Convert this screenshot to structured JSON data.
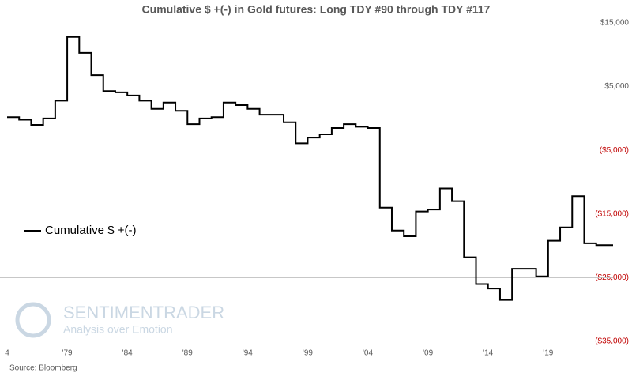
{
  "chart_data": {
    "type": "line",
    "step": true,
    "title": "Cumulative $ +(-) in Gold futures: Long TDY #90 through TDY #117",
    "source": "Source: Bloomberg",
    "watermark": {
      "name": "SENTIMENTRADER",
      "tagline": "Analysis over Emotion"
    },
    "x": [
      1974,
      1975,
      1976,
      1977,
      1978,
      1979,
      1980,
      1981,
      1982,
      1983,
      1984,
      1985,
      1986,
      1987,
      1988,
      1989,
      1990,
      1991,
      1992,
      1993,
      1994,
      1995,
      1996,
      1997,
      1998,
      1999,
      2000,
      2001,
      2002,
      2003,
      2004,
      2005,
      2006,
      2007,
      2008,
      2009,
      2010,
      2011,
      2012,
      2013,
      2014,
      2015,
      2016,
      2017,
      2018,
      2019,
      2020,
      2021,
      2022,
      2023,
      2024
    ],
    "series": [
      {
        "name": "Cumulative $ +(-)",
        "color": "#000000",
        "values": [
          200,
          -200,
          -1000,
          0,
          2800,
          12800,
          10300,
          6800,
          4300,
          4100,
          3600,
          2800,
          1500,
          2500,
          1200,
          -900,
          0,
          200,
          2500,
          2100,
          1500,
          600,
          600,
          -600,
          -3900,
          -3000,
          -2500,
          -1500,
          -900,
          -1300,
          -1500,
          -14000,
          -17600,
          -18500,
          -14600,
          -14300,
          -11000,
          -13000,
          -21800,
          -26000,
          -26700,
          -28500,
          -23600,
          -23600,
          -24800,
          -19200,
          -17100,
          -12200,
          -19600,
          -19900,
          -19900
        ]
      }
    ],
    "xlim": [
      1974,
      2024.4
    ],
    "xticks": [
      {
        "value": 1974,
        "label": "4"
      },
      {
        "value": 1979,
        "label": "'79"
      },
      {
        "value": 1984,
        "label": "'84"
      },
      {
        "value": 1989,
        "label": "'89"
      },
      {
        "value": 1994,
        "label": "'94"
      },
      {
        "value": 1999,
        "label": "'99"
      },
      {
        "value": 2004,
        "label": "'04"
      },
      {
        "value": 2009,
        "label": "'09"
      },
      {
        "value": 2014,
        "label": "'14"
      },
      {
        "value": 2019,
        "label": "'19"
      }
    ],
    "ylim": [
      -35000,
      15000
    ],
    "yticks": [
      {
        "value": 15000,
        "label": "$15,000"
      },
      {
        "value": 5000,
        "label": "$5,000"
      },
      {
        "value": -5000,
        "label": "($5,000)"
      },
      {
        "value": -15000,
        "label": "($15,000)"
      },
      {
        "value": -25000,
        "label": "($25,000)"
      },
      {
        "value": -35000,
        "label": "($35,000)"
      }
    ],
    "xaxis_crosses": -25000,
    "legend": "left"
  }
}
